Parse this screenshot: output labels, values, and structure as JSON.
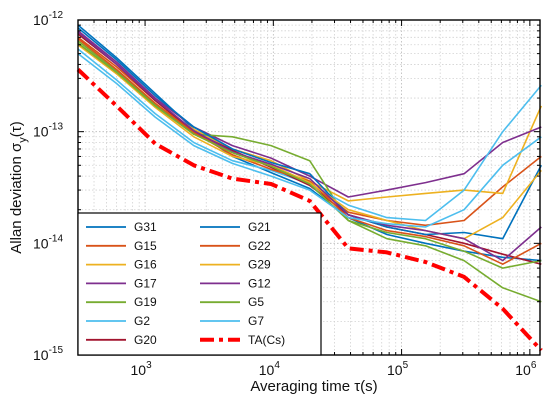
{
  "chart_data": {
    "type": "line",
    "xlabel": "Averaging time τ(s)",
    "ylabel": "Allan deviation σ",
    "ylabel_sub": "y",
    "ylabel_tail": "(τ)",
    "x_scale": "log",
    "y_scale": "log",
    "xlim": [
      300,
      1200000
    ],
    "ylim": [
      1e-15,
      1e-12
    ],
    "grid": true,
    "legend_position": "bottom-left",
    "x_ticks": [
      {
        "base": "10",
        "exp": "3",
        "value": 1000
      },
      {
        "base": "10",
        "exp": "4",
        "value": 10000
      },
      {
        "base": "10",
        "exp": "5",
        "value": 100000
      },
      {
        "base": "10",
        "exp": "6",
        "value": 1000000
      }
    ],
    "y_ticks": [
      {
        "base": "10",
        "exp": "-12",
        "value": 1e-12
      },
      {
        "base": "10",
        "exp": "-13",
        "value": 1e-13
      },
      {
        "base": "10",
        "exp": "-14",
        "value": 1e-14
      },
      {
        "base": "10",
        "exp": "-15",
        "value": 1e-15
      }
    ],
    "x": [
      300,
      600,
      1200,
      2400,
      4800,
      9600,
      19200,
      38400,
      76800,
      153600,
      307200,
      614400,
      1228800
    ],
    "series": [
      {
        "name": "G31",
        "color": "#0072BD",
        "dash": false,
        "values": [
          9e-13,
          4.6e-13,
          2.2e-13,
          1.05e-13,
          6e-14,
          4.3e-14,
          3.1e-14,
          1.7e-14,
          1.2e-14,
          1e-14,
          8.5e-15,
          7.5e-15,
          7e-15
        ]
      },
      {
        "name": "G15",
        "color": "#D95319",
        "dash": false,
        "values": [
          7e-13,
          3.8e-13,
          1.9e-13,
          1e-13,
          6.5e-14,
          5e-14,
          3.5e-14,
          1.9e-14,
          1.6e-14,
          1.45e-14,
          1.6e-14,
          3.2e-14,
          6e-14
        ]
      },
      {
        "name": "G16",
        "color": "#EDB120",
        "dash": false,
        "values": [
          6e-13,
          3.3e-13,
          1.75e-13,
          1.05e-13,
          7e-14,
          5.5e-14,
          3.6e-14,
          2.4e-14,
          2.6e-14,
          2.8e-14,
          3e-14,
          2.8e-14,
          1.7e-13
        ]
      },
      {
        "name": "G17",
        "color": "#7E2F8E",
        "dash": false,
        "values": [
          8e-13,
          4.2e-13,
          2e-13,
          1.1e-13,
          7.5e-14,
          5.8e-14,
          4e-14,
          2.6e-14,
          3e-14,
          3.5e-14,
          4.2e-14,
          8e-14,
          1.1e-13
        ]
      },
      {
        "name": "G19",
        "color": "#77AC30",
        "dash": false,
        "values": [
          6.5e-13,
          3.5e-13,
          1.75e-13,
          9.5e-14,
          9e-14,
          7.5e-14,
          5.5e-14,
          1.6e-14,
          1.1e-14,
          9.5e-15,
          7e-15,
          4e-15,
          3e-15
        ]
      },
      {
        "name": "G2",
        "color": "#4DBEEE",
        "dash": false,
        "values": [
          5.5e-13,
          2.9e-13,
          1.45e-13,
          8e-14,
          5.5e-14,
          4.5e-14,
          3.4e-14,
          2.2e-14,
          1.7e-14,
          1.6e-14,
          3e-14,
          1e-13,
          2.6e-13
        ]
      },
      {
        "name": "G20",
        "color": "#A2142F",
        "dash": false,
        "values": [
          7.5e-13,
          4e-13,
          1.9e-13,
          1e-13,
          6.8e-14,
          4.8e-14,
          3.3e-14,
          1.8e-14,
          1.4e-14,
          1.2e-14,
          1e-14,
          8e-15,
          6.5e-15
        ]
      },
      {
        "name": "G21",
        "color": "#0072BD",
        "dash": false,
        "values": [
          8.5e-13,
          4.4e-13,
          2.1e-13,
          1.1e-13,
          7e-14,
          5.3e-14,
          4.2e-14,
          1.8e-14,
          1.4e-14,
          1.2e-14,
          1.25e-14,
          1.1e-14,
          5e-14
        ]
      },
      {
        "name": "G22",
        "color": "#D95319",
        "dash": false,
        "values": [
          6.8e-13,
          3.6e-13,
          1.8e-13,
          9.8e-14,
          6.2e-14,
          4.6e-14,
          3.6e-14,
          1.7e-14,
          1.3e-14,
          1.15e-14,
          9.5e-15,
          6.5e-15,
          1e-14
        ]
      },
      {
        "name": "G29",
        "color": "#EDB120",
        "dash": false,
        "values": [
          6.2e-13,
          3.3e-13,
          1.65e-13,
          9e-14,
          6e-14,
          5e-14,
          3.5e-14,
          2e-14,
          1.6e-14,
          1.3e-14,
          1.1e-14,
          1.7e-14,
          4.5e-14
        ]
      },
      {
        "name": "G12",
        "color": "#7E2F8E",
        "dash": false,
        "values": [
          7.8e-13,
          4e-13,
          1.95e-13,
          1.02e-13,
          6.6e-14,
          5.1e-14,
          3.8e-14,
          1.8e-14,
          1.45e-14,
          1.3e-14,
          1.1e-14,
          7e-15,
          1.4e-14
        ]
      },
      {
        "name": "G5",
        "color": "#77AC30",
        "dash": false,
        "values": [
          6.2e-13,
          3.4e-13,
          1.7e-13,
          9.5e-14,
          6.5e-14,
          4.9e-14,
          3.4e-14,
          1.6e-14,
          1.25e-14,
          1.1e-14,
          8.5e-15,
          6e-15,
          7e-15
        ]
      },
      {
        "name": "G7",
        "color": "#4DBEEE",
        "dash": false,
        "values": [
          5e-13,
          2.7e-13,
          1.35e-13,
          7.5e-14,
          5.2e-14,
          4e-14,
          3e-14,
          1.7e-14,
          1.5e-14,
          1.4e-14,
          2e-14,
          5e-14,
          9e-14
        ]
      },
      {
        "name": "TA(Cs)",
        "color": "#FF0000",
        "dash": true,
        "values": [
          3.6e-13,
          1.7e-13,
          7.8e-14,
          5e-14,
          3.8e-14,
          3.4e-14,
          2.4e-14,
          9e-15,
          8.3e-15,
          6.8e-15,
          5e-15,
          2.6e-15,
          1.1e-15
        ]
      }
    ]
  }
}
